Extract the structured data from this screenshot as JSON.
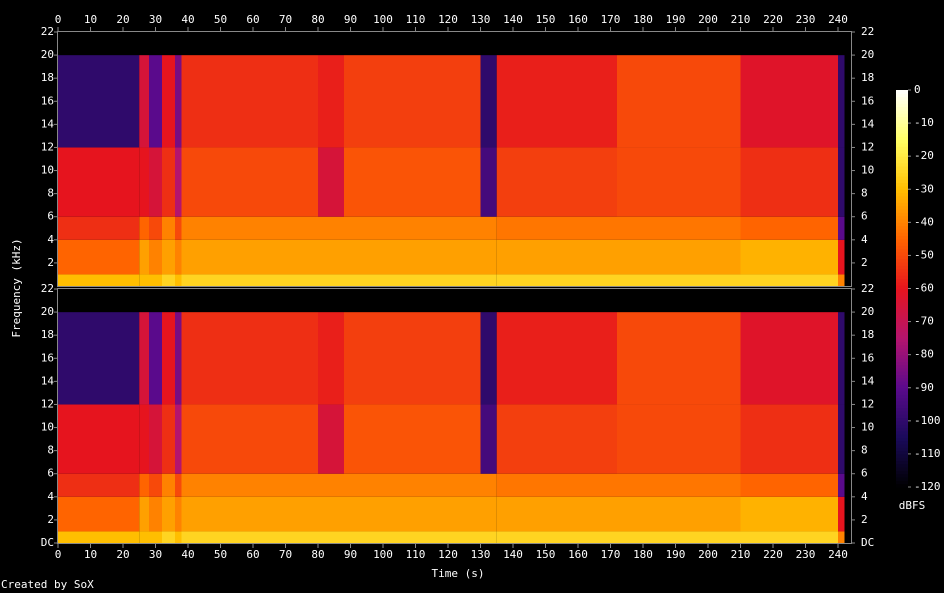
{
  "chart_data": {
    "type": "heatmap",
    "x_label": "Time (s)",
    "y_label": "Frequency (kHz)",
    "colorbar_label": "dBFS",
    "credit": "Created by SoX",
    "xlim": [
      0,
      244
    ],
    "xticks": [
      0,
      10,
      20,
      30,
      40,
      50,
      60,
      70,
      80,
      90,
      100,
      110,
      120,
      130,
      140,
      150,
      160,
      170,
      180,
      190,
      200,
      210,
      220,
      230,
      240
    ],
    "channels": [
      {
        "ylim": [
          0,
          22
        ],
        "yticks": [
          2,
          4,
          6,
          8,
          10,
          12,
          14,
          16,
          18,
          20,
          22
        ]
      },
      {
        "ylim": [
          0,
          22
        ],
        "yticks": [
          {
            "value": 0,
            "label": "DC"
          },
          2,
          4,
          6,
          8,
          10,
          12,
          14,
          16,
          18,
          20,
          22
        ]
      }
    ],
    "time_edges": [
      0,
      25,
      28,
      32,
      36,
      38,
      80,
      88,
      130,
      135,
      172,
      210,
      240,
      242,
      244
    ],
    "freq_edges": [
      0,
      1,
      4,
      6,
      12,
      20,
      22
    ],
    "z": [
      [
        -30,
        -45,
        -55,
        -60,
        -100,
        -120
      ],
      [
        -30,
        -35,
        -45,
        -60,
        -65,
        -120
      ],
      [
        -30,
        -40,
        -50,
        -65,
        -90,
        -120
      ],
      [
        -25,
        -35,
        -40,
        -55,
        -60,
        -120
      ],
      [
        -30,
        -40,
        -50,
        -75,
        -85,
        -120
      ],
      [
        -25,
        -35,
        -40,
        -50,
        -55,
        -120
      ],
      [
        -25,
        -35,
        -40,
        -65,
        -58,
        -120
      ],
      [
        -25,
        -35,
        -40,
        -48,
        -52,
        -120
      ],
      [
        -25,
        -35,
        -40,
        -95,
        -100,
        -120
      ],
      [
        -25,
        -35,
        -42,
        -52,
        -58,
        -120
      ],
      [
        -25,
        -35,
        -42,
        -50,
        -50,
        -120
      ],
      [
        -25,
        -32,
        -45,
        -55,
        -62,
        -120
      ],
      [
        -40,
        -60,
        -90,
        -100,
        -100,
        -120
      ],
      [
        -120,
        -120,
        -120,
        -120,
        -120,
        -120
      ]
    ],
    "zlim": [
      -120,
      0
    ],
    "zticks": [
      0,
      -10,
      -20,
      -30,
      -40,
      -50,
      -60,
      -70,
      -80,
      -90,
      -100,
      -110,
      -120
    ],
    "colormap": [
      "#000000",
      "#1a0a5a",
      "#5a0a8c",
      "#b4146e",
      "#e6141e",
      "#ff6400",
      "#ffbe00",
      "#ffff64",
      "#ffffff"
    ]
  }
}
